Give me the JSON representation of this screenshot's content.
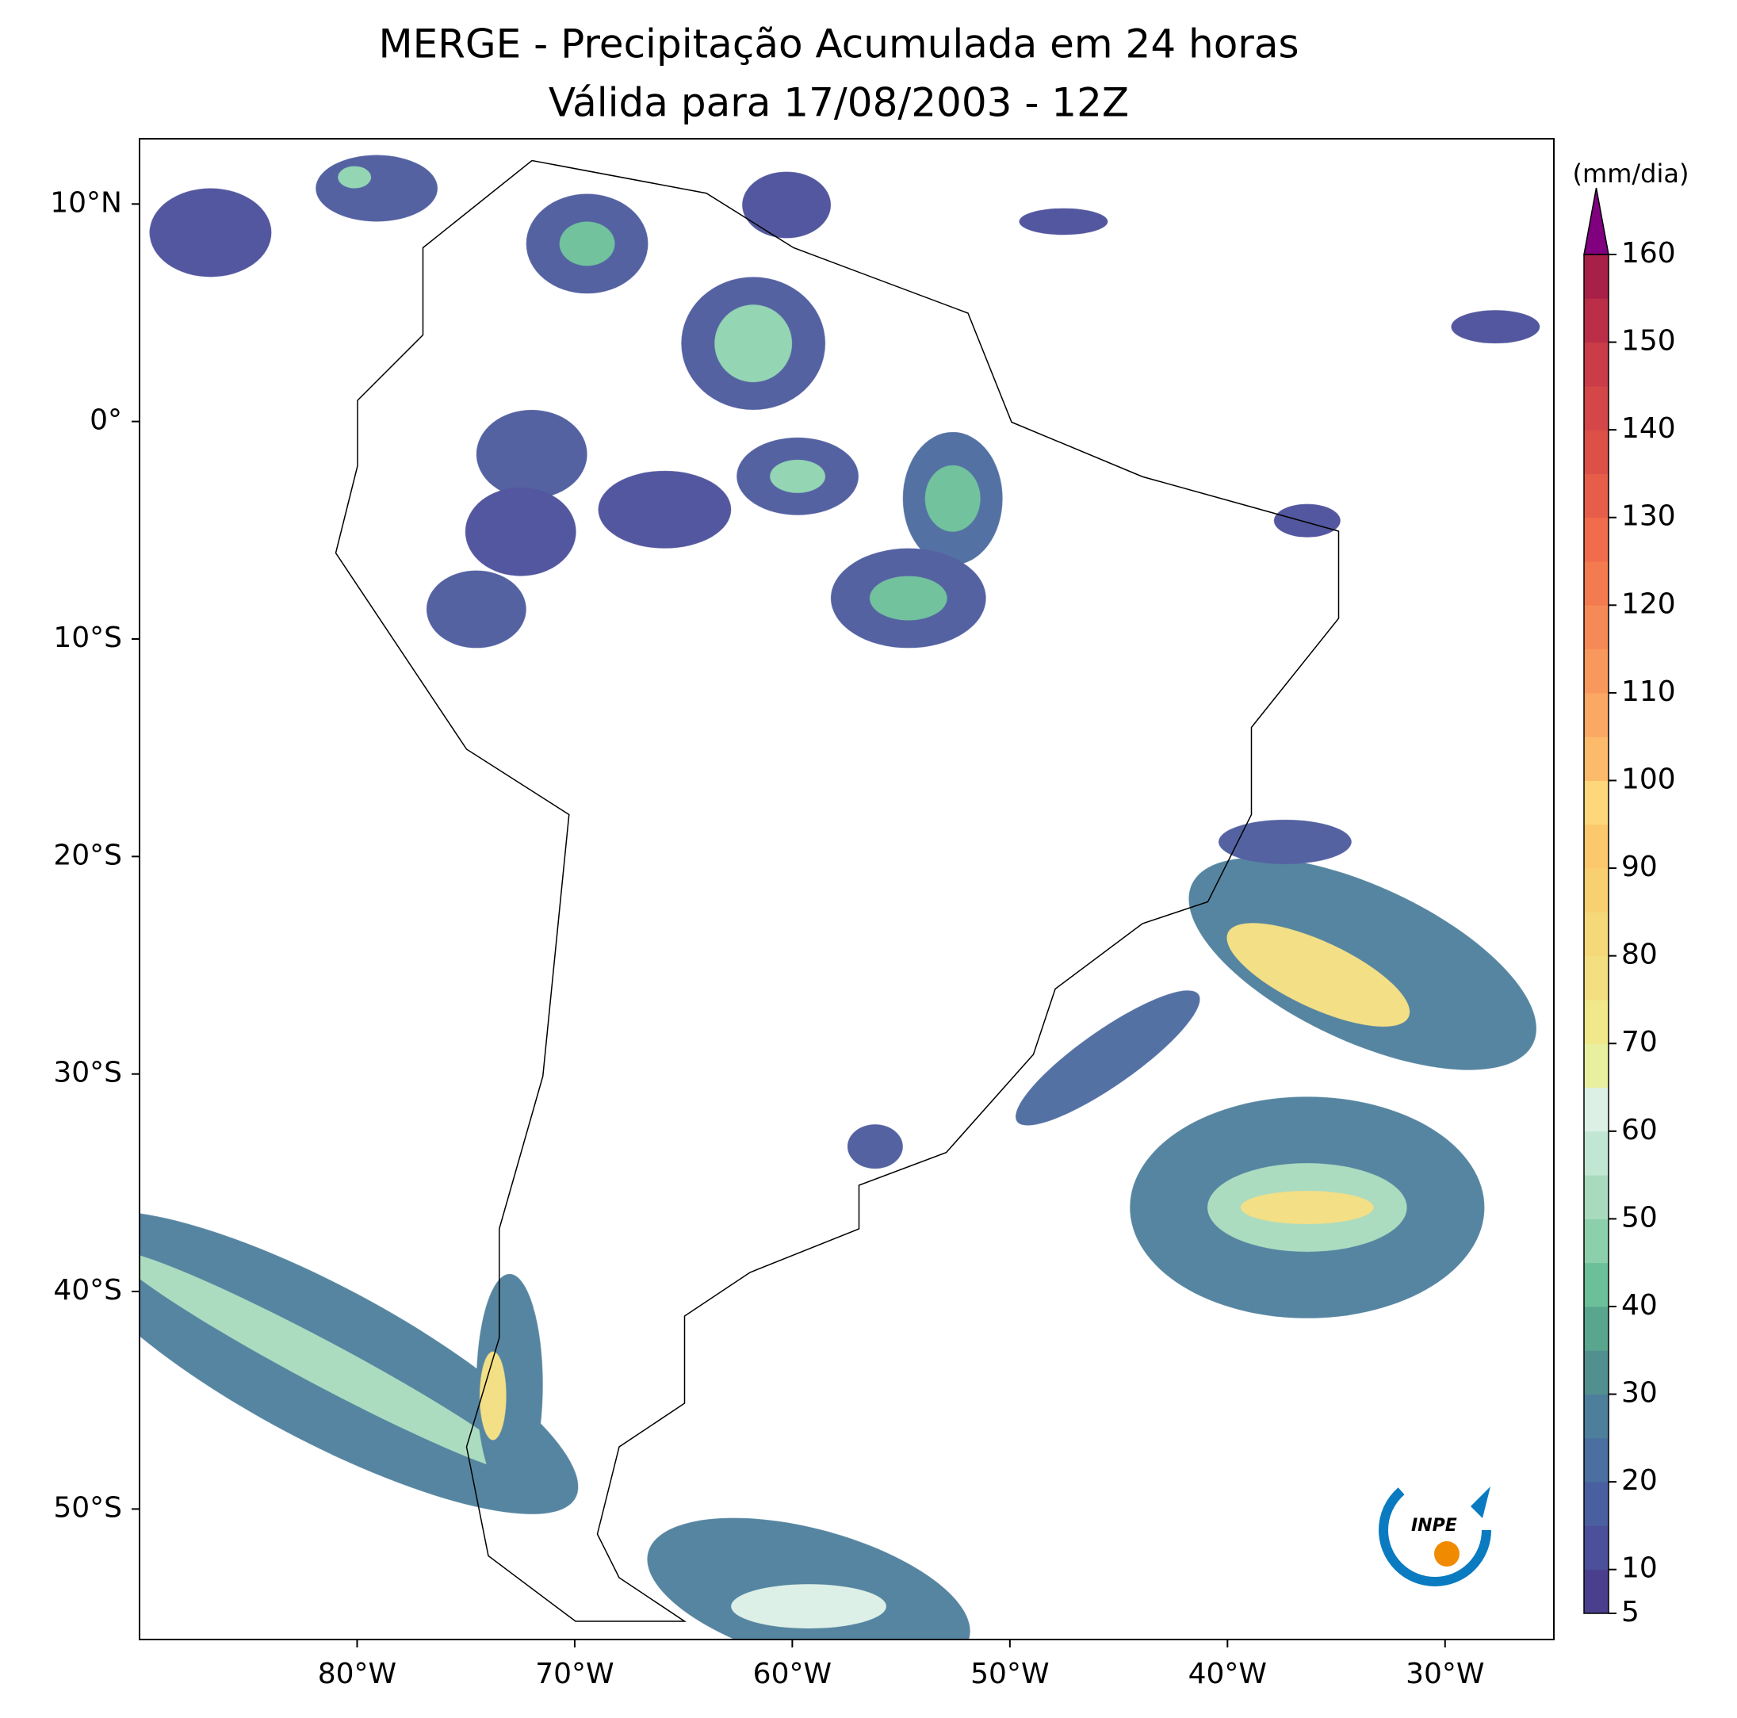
{
  "title": "MERGE - Precipitação Acumulada em 24 horas",
  "subtitle": "Válida para 17/08/2003 - 12Z",
  "map": {
    "xlim": [
      -90,
      -25
    ],
    "ylim": [
      -56,
      13
    ],
    "xticks": [
      {
        "value": -80,
        "label": "80°W"
      },
      {
        "value": -70,
        "label": "70°W"
      },
      {
        "value": -60,
        "label": "60°W"
      },
      {
        "value": -50,
        "label": "50°W"
      },
      {
        "value": -40,
        "label": "40°W"
      },
      {
        "value": -30,
        "label": "30°W"
      }
    ],
    "yticks": [
      {
        "value": 10,
        "label": "10°N"
      },
      {
        "value": 0,
        "label": "0°"
      },
      {
        "value": -10,
        "label": "10°S"
      },
      {
        "value": -20,
        "label": "20°S"
      },
      {
        "value": -30,
        "label": "30°S"
      },
      {
        "value": -40,
        "label": "40°S"
      },
      {
        "value": -50,
        "label": "50°S"
      }
    ]
  },
  "colorbar": {
    "label": "(mm/dia)",
    "ylim": [
      5,
      160
    ],
    "yticks": [
      5,
      10,
      20,
      30,
      40,
      50,
      60,
      70,
      80,
      90,
      100,
      110,
      120,
      130,
      140,
      150,
      160
    ],
    "colors": [
      "#4a3f8c",
      "#4c4f9a",
      "#4a5fa0",
      "#4a6fa0",
      "#4d7f9c",
      "#52908f",
      "#5aa58e",
      "#6bbf99",
      "#8ccfab",
      "#a8dbbd",
      "#c1e6d2",
      "#dcf0e6",
      "#e8f0a0",
      "#f0e88a",
      "#f3de80",
      "#f5d878",
      "#f8d070",
      "#fbc86c",
      "#fdd77a",
      "#fbbb6a",
      "#fba864",
      "#f8985c",
      "#f68a56",
      "#f47b50",
      "#f06c4c",
      "#e65d4a",
      "#dc5048",
      "#d44648",
      "#c93c48",
      "#bb2e48",
      "#a82048"
    ],
    "extend_color": "#800080"
  },
  "logo_text": "INPE"
}
